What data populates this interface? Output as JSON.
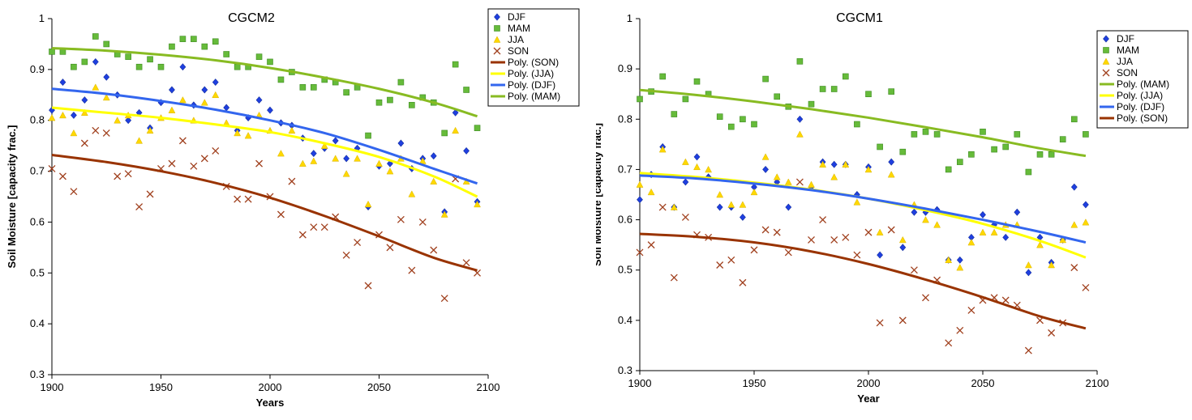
{
  "chart_data": [
    {
      "type": "scatter",
      "title": "CGCM2",
      "xlabel": "Years",
      "ylabel": "Soil Moisture [capacity frac.]",
      "xlim": [
        1900,
        2100
      ],
      "ylim": [
        0.3,
        1
      ],
      "xticks": [
        "1900",
        "1950",
        "2000",
        "2050",
        "2100"
      ],
      "yticks": [
        "0.3",
        "0.4",
        "0.5",
        "0.6",
        "0.7",
        "0.8",
        "0.9",
        "1"
      ],
      "grid": false,
      "legend_position": "right",
      "series": [
        {
          "name": "DJF",
          "marker": "diamond",
          "color": "#1f3fe0",
          "x": [
            1900,
            1905,
            1910,
            1915,
            1920,
            1925,
            1930,
            1935,
            1940,
            1945,
            1950,
            1955,
            1960,
            1965,
            1970,
            1975,
            1980,
            1985,
            1990,
            1995,
            2000,
            2005,
            2010,
            2015,
            2020,
            2025,
            2030,
            2035,
            2040,
            2045,
            2050,
            2055,
            2060,
            2065,
            2070,
            2075,
            2080,
            2085,
            2090,
            2095
          ],
          "y": [
            0.82,
            0.875,
            0.81,
            0.84,
            0.915,
            0.885,
            0.85,
            0.8,
            0.815,
            0.785,
            0.835,
            0.86,
            0.905,
            0.83,
            0.86,
            0.875,
            0.825,
            0.78,
            0.805,
            0.84,
            0.82,
            0.795,
            0.79,
            0.765,
            0.735,
            0.745,
            0.76,
            0.725,
            0.745,
            0.63,
            0.71,
            0.715,
            0.755,
            0.705,
            0.725,
            0.73,
            0.62,
            0.815,
            0.74,
            0.64
          ]
        },
        {
          "name": "MAM",
          "marker": "square",
          "color": "#66bb3a",
          "x": [
            1900,
            1905,
            1910,
            1915,
            1920,
            1925,
            1930,
            1935,
            1940,
            1945,
            1950,
            1955,
            1960,
            1965,
            1970,
            1975,
            1980,
            1985,
            1990,
            1995,
            2000,
            2005,
            2010,
            2015,
            2020,
            2025,
            2030,
            2035,
            2040,
            2045,
            2050,
            2055,
            2060,
            2065,
            2070,
            2075,
            2080,
            2085,
            2090,
            2095
          ],
          "y": [
            0.935,
            0.935,
            0.905,
            0.915,
            0.965,
            0.95,
            0.93,
            0.925,
            0.905,
            0.92,
            0.905,
            0.945,
            0.96,
            0.96,
            0.945,
            0.955,
            0.93,
            0.905,
            0.905,
            0.925,
            0.915,
            0.88,
            0.895,
            0.865,
            0.865,
            0.88,
            0.875,
            0.855,
            0.865,
            0.77,
            0.835,
            0.84,
            0.875,
            0.83,
            0.845,
            0.835,
            0.775,
            0.91,
            0.86,
            0.785
          ]
        },
        {
          "name": "JJA",
          "marker": "triangle",
          "color": "#ffd800",
          "x": [
            1900,
            1905,
            1910,
            1915,
            1920,
            1925,
            1930,
            1935,
            1940,
            1945,
            1950,
            1955,
            1960,
            1965,
            1970,
            1975,
            1980,
            1985,
            1990,
            1995,
            2000,
            2005,
            2010,
            2015,
            2020,
            2025,
            2030,
            2035,
            2040,
            2045,
            2050,
            2055,
            2060,
            2065,
            2070,
            2075,
            2080,
            2085,
            2090,
            2095
          ],
          "y": [
            0.805,
            0.81,
            0.775,
            0.815,
            0.865,
            0.845,
            0.8,
            0.81,
            0.76,
            0.78,
            0.805,
            0.82,
            0.84,
            0.8,
            0.835,
            0.85,
            0.795,
            0.775,
            0.77,
            0.81,
            0.78,
            0.735,
            0.78,
            0.715,
            0.72,
            0.75,
            0.725,
            0.695,
            0.725,
            0.635,
            0.715,
            0.7,
            0.725,
            0.655,
            0.72,
            0.68,
            0.615,
            0.78,
            0.68,
            0.635
          ]
        },
        {
          "name": "SON",
          "marker": "x",
          "color": "#a0401e",
          "x": [
            1900,
            1905,
            1910,
            1915,
            1920,
            1925,
            1930,
            1935,
            1940,
            1945,
            1950,
            1955,
            1960,
            1965,
            1970,
            1975,
            1980,
            1985,
            1990,
            1995,
            2000,
            2005,
            2010,
            2015,
            2020,
            2025,
            2030,
            2035,
            2040,
            2045,
            2050,
            2055,
            2060,
            2065,
            2070,
            2075,
            2080,
            2085,
            2090,
            2095
          ],
          "y": [
            0.705,
            0.69,
            0.66,
            0.755,
            0.78,
            0.775,
            0.69,
            0.695,
            0.63,
            0.655,
            0.705,
            0.715,
            0.76,
            0.71,
            0.725,
            0.74,
            0.67,
            0.645,
            0.645,
            0.715,
            0.65,
            0.615,
            0.68,
            0.575,
            0.59,
            0.59,
            0.61,
            0.535,
            0.56,
            0.475,
            0.575,
            0.55,
            0.605,
            0.505,
            0.6,
            0.545,
            0.45,
            0.685,
            0.52,
            0.5
          ]
        }
      ],
      "trendlines": [
        {
          "name": "Poly. (SON)",
          "color": "#993300",
          "x": [
            1900,
            1925,
            1950,
            1975,
            2000,
            2025,
            2050,
            2075,
            2095
          ],
          "y": [
            0.732,
            0.718,
            0.7,
            0.677,
            0.648,
            0.612,
            0.572,
            0.53,
            0.505
          ]
        },
        {
          "name": "Poly. (JJA)",
          "color": "#ffff00",
          "x": [
            1900,
            1925,
            1950,
            1975,
            2000,
            2025,
            2050,
            2075,
            2095
          ],
          "y": [
            0.825,
            0.815,
            0.805,
            0.792,
            0.777,
            0.755,
            0.728,
            0.69,
            0.65
          ]
        },
        {
          "name": "Poly. (DJF)",
          "color": "#3366ee",
          "x": [
            1900,
            1925,
            1950,
            1975,
            2000,
            2025,
            2050,
            2075,
            2095
          ],
          "y": [
            0.862,
            0.852,
            0.838,
            0.821,
            0.8,
            0.775,
            0.742,
            0.705,
            0.676
          ]
        },
        {
          "name": "Poly. (MAM)",
          "color": "#88bb22",
          "x": [
            1900,
            1925,
            1950,
            1975,
            2000,
            2025,
            2050,
            2075,
            2095
          ],
          "y": [
            0.942,
            0.937,
            0.929,
            0.918,
            0.903,
            0.884,
            0.862,
            0.835,
            0.808
          ]
        }
      ]
    },
    {
      "type": "scatter",
      "title": "CGCM1",
      "xlabel": "Year",
      "ylabel": "Soil Moisture [capacity frac.]",
      "xlim": [
        1900,
        2100
      ],
      "ylim": [
        0.3,
        1
      ],
      "xticks": [
        "1900",
        "1950",
        "2000",
        "2050",
        "2100"
      ],
      "yticks": [
        "0.3",
        "0.4",
        "0.5",
        "0.6",
        "0.7",
        "0.8",
        "0.9",
        "1"
      ],
      "grid": false,
      "legend_position": "right",
      "series": [
        {
          "name": "DJF",
          "marker": "diamond",
          "color": "#1f3fe0",
          "x": [
            1900,
            1905,
            1910,
            1915,
            1920,
            1925,
            1930,
            1935,
            1940,
            1945,
            1950,
            1955,
            1960,
            1965,
            1970,
            1975,
            1980,
            1985,
            1990,
            1995,
            2000,
            2005,
            2010,
            2015,
            2020,
            2025,
            2030,
            2035,
            2040,
            2045,
            2050,
            2055,
            2060,
            2065,
            2070,
            2075,
            2080,
            2085,
            2090,
            2095
          ],
          "y": [
            0.64,
            0.69,
            0.745,
            0.625,
            0.675,
            0.725,
            0.685,
            0.625,
            0.625,
            0.605,
            0.665,
            0.7,
            0.675,
            0.625,
            0.8,
            0.665,
            0.715,
            0.71,
            0.71,
            0.65,
            0.705,
            0.53,
            0.715,
            0.545,
            0.615,
            0.615,
            0.62,
            0.52,
            0.52,
            0.565,
            0.61,
            0.59,
            0.565,
            0.615,
            0.495,
            0.565,
            0.515,
            0.56,
            0.665,
            0.63
          ]
        },
        {
          "name": "MAM",
          "marker": "square",
          "color": "#66bb3a",
          "x": [
            1900,
            1905,
            1910,
            1915,
            1920,
            1925,
            1930,
            1935,
            1940,
            1945,
            1950,
            1955,
            1960,
            1965,
            1970,
            1975,
            1980,
            1985,
            1990,
            1995,
            2000,
            2005,
            2010,
            2015,
            2020,
            2025,
            2030,
            2035,
            2040,
            2045,
            2050,
            2055,
            2060,
            2065,
            2070,
            2075,
            2080,
            2085,
            2090,
            2095
          ],
          "y": [
            0.84,
            0.855,
            0.885,
            0.81,
            0.84,
            0.875,
            0.85,
            0.805,
            0.785,
            0.8,
            0.79,
            0.88,
            0.845,
            0.825,
            0.915,
            0.83,
            0.86,
            0.86,
            0.885,
            0.79,
            0.85,
            0.745,
            0.855,
            0.735,
            0.77,
            0.775,
            0.77,
            0.7,
            0.715,
            0.73,
            0.775,
            0.74,
            0.745,
            0.77,
            0.695,
            0.73,
            0.73,
            0.76,
            0.8,
            0.77
          ]
        },
        {
          "name": "JJA",
          "marker": "triangle",
          "color": "#ffd800",
          "x": [
            1900,
            1905,
            1910,
            1915,
            1920,
            1925,
            1930,
            1935,
            1940,
            1945,
            1950,
            1955,
            1960,
            1965,
            1970,
            1975,
            1980,
            1985,
            1990,
            1995,
            2000,
            2005,
            2010,
            2015,
            2020,
            2025,
            2030,
            2035,
            2040,
            2045,
            2050,
            2055,
            2060,
            2065,
            2070,
            2075,
            2080,
            2085,
            2090,
            2095
          ],
          "y": [
            0.67,
            0.655,
            0.74,
            0.625,
            0.715,
            0.705,
            0.7,
            0.65,
            0.63,
            0.63,
            0.655,
            0.725,
            0.685,
            0.675,
            0.77,
            0.67,
            0.71,
            0.685,
            0.71,
            0.635,
            0.7,
            0.575,
            0.69,
            0.56,
            0.63,
            0.6,
            0.59,
            0.52,
            0.505,
            0.555,
            0.575,
            0.575,
            0.59,
            0.59,
            0.51,
            0.55,
            0.51,
            0.56,
            0.59,
            0.595
          ]
        },
        {
          "name": "SON",
          "marker": "x",
          "color": "#a0401e",
          "x": [
            1900,
            1905,
            1910,
            1915,
            1920,
            1925,
            1930,
            1935,
            1940,
            1945,
            1950,
            1955,
            1960,
            1965,
            1970,
            1975,
            1980,
            1985,
            1990,
            1995,
            2000,
            2005,
            2010,
            2015,
            2020,
            2025,
            2030,
            2035,
            2040,
            2045,
            2050,
            2055,
            2060,
            2065,
            2070,
            2075,
            2080,
            2085,
            2090,
            2095
          ],
          "y": [
            0.535,
            0.55,
            0.625,
            0.485,
            0.605,
            0.57,
            0.565,
            0.51,
            0.52,
            0.475,
            0.54,
            0.58,
            0.575,
            0.535,
            0.675,
            0.56,
            0.6,
            0.56,
            0.565,
            0.53,
            0.575,
            0.395,
            0.58,
            0.4,
            0.5,
            0.445,
            0.48,
            0.355,
            0.38,
            0.42,
            0.44,
            0.445,
            0.44,
            0.43,
            0.34,
            0.4,
            0.375,
            0.395,
            0.505,
            0.465
          ]
        }
      ],
      "trendlines": [
        {
          "name": "Poly. (MAM)",
          "color": "#88bb22",
          "x": [
            1900,
            1925,
            1950,
            1975,
            2000,
            2025,
            2050,
            2075,
            2095
          ],
          "y": [
            0.858,
            0.848,
            0.835,
            0.82,
            0.803,
            0.784,
            0.764,
            0.742,
            0.727
          ]
        },
        {
          "name": "Poly. (JJA)",
          "color": "#ffff00",
          "x": [
            1900,
            1925,
            1950,
            1975,
            2000,
            2025,
            2050,
            2075,
            2095
          ],
          "y": [
            0.693,
            0.685,
            0.674,
            0.66,
            0.642,
            0.619,
            0.592,
            0.558,
            0.525
          ]
        },
        {
          "name": "Poly. (DJF)",
          "color": "#3366ee",
          "x": [
            1900,
            1925,
            1950,
            1975,
            2000,
            2025,
            2050,
            2075,
            2095
          ],
          "y": [
            0.688,
            0.682,
            0.672,
            0.659,
            0.642,
            0.622,
            0.6,
            0.576,
            0.555
          ]
        },
        {
          "name": "Poly. (SON)",
          "color": "#993300",
          "x": [
            1900,
            1925,
            1950,
            1975,
            2000,
            2025,
            2050,
            2075,
            2095
          ],
          "y": [
            0.572,
            0.566,
            0.555,
            0.537,
            0.512,
            0.481,
            0.446,
            0.408,
            0.384
          ]
        }
      ]
    }
  ]
}
